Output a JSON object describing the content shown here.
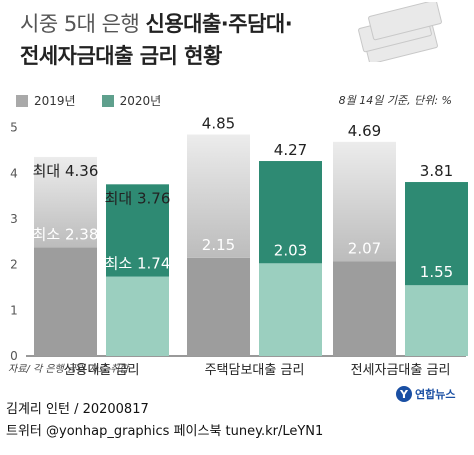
{
  "title": {
    "line1_light": "시중 5대 은행 ",
    "line1_bold": "신용대출·주담대·",
    "line2": "전세자금대출 금리 현황"
  },
  "note": "8월 14일 기준, 단위: %",
  "source": "자료/ 각 은행 금리 자료 취합",
  "credit_line1": "김계리 인턴 / 20200817",
  "credit_line2": "트위터 @yonhap_graphics  페이스북 tuney.kr/LeYN1",
  "logo_text": "연합뉴스",
  "logo_mark": "Y",
  "colors": {
    "s2019_top": "#bcbcbc",
    "s2019_bottom": "#9d9d9d",
    "s2020_top": "#2e8a73",
    "s2020_bottom": "#9bcfbf",
    "axis": "#333333"
  },
  "chart_data": {
    "type": "bar",
    "stacked": true,
    "categories": [
      "신용대출 금리",
      "주택담보대출 금리",
      "전세자금대출 금리"
    ],
    "series": [
      {
        "name": "2019년",
        "min": [
          2.38,
          2.15,
          2.07
        ],
        "max": [
          4.36,
          4.85,
          4.69
        ],
        "min_labels": [
          "최소 2.38",
          "2.15",
          "2.07"
        ],
        "max_labels": [
          "최대 4.36",
          "4.85",
          "4.69"
        ]
      },
      {
        "name": "2020년",
        "min": [
          1.74,
          2.03,
          1.55
        ],
        "max": [
          3.76,
          4.27,
          3.81
        ],
        "min_labels": [
          "최소 1.74",
          "2.03",
          "1.55"
        ],
        "max_labels": [
          "최대 3.76",
          "4.27",
          "3.81"
        ]
      }
    ],
    "yticks": [
      "0",
      "1",
      "2",
      "3",
      "4",
      "5"
    ],
    "ylim": [
      0,
      5.3
    ],
    "grid": false,
    "legend": "top-left"
  }
}
